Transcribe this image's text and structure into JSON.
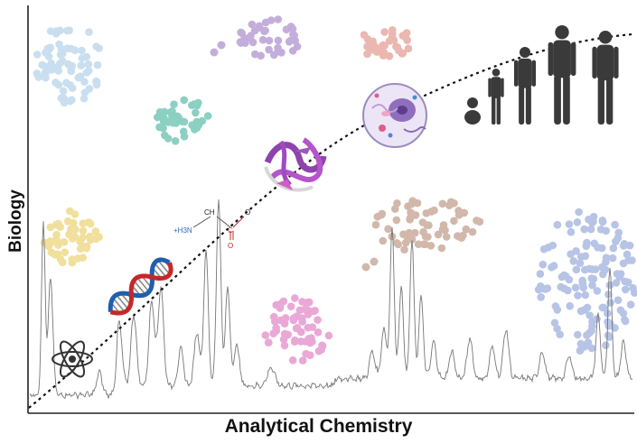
{
  "axes": {
    "x_title": "Analytical Chemistry",
    "y_title": "Biology"
  },
  "molecule_labels": {
    "ch": "CH",
    "amine": "+H3N",
    "carbon": "C",
    "oxygen_top": "O",
    "oxygen_bottom": "O"
  },
  "colors": {
    "axis": "#222222",
    "trend_curve": "#111111",
    "spectrum": "#777777",
    "human": "#3a3a3a",
    "cluster_light_blue": "#c9dff0",
    "cluster_lavender": "#c3aedb",
    "cluster_salmon": "#ebb7b1",
    "cluster_teal": "#8ccfc3",
    "cluster_yellow": "#f1df9c",
    "cluster_tan": "#d1b8aa",
    "cluster_pink": "#e9a8d6",
    "cluster_periwinkle": "#b7c4e6"
  },
  "icons": [
    "atom-icon",
    "dna-helix-icon",
    "amino-acid-icon",
    "protein-icon",
    "cell-icon",
    "human-development-icon"
  ]
}
